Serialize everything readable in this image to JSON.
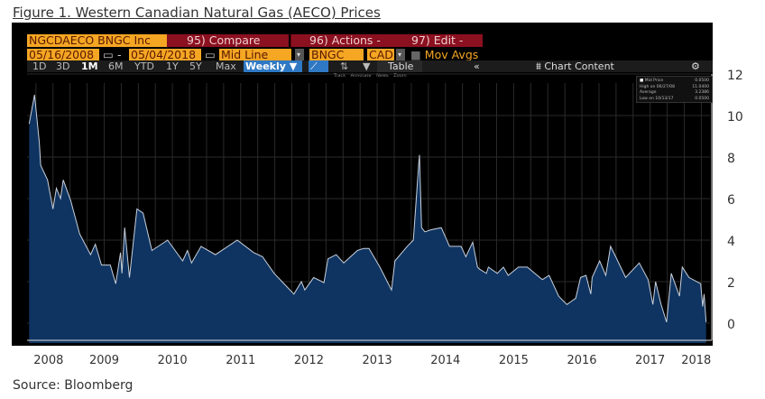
{
  "figure_title": "Figure 1. Western Canadian Natural Gas (AECO) Prices",
  "source": "Source: Bloomberg",
  "toolbar": {
    "ticker": "NGCDAECO BNGC Inc",
    "compare": "95) Compare",
    "actions": "96) Actions",
    "actions_dash": "-",
    "edit": "97) Edit -",
    "start_date": "05/16/2008",
    "date_sep": "-",
    "end_date": "05/04/2018",
    "line_type": "Mid Line",
    "source_code": "BNGC",
    "currency": "CAD",
    "mov_avgs": "Mov Avgs",
    "periods": [
      "1D",
      "3D",
      "1M",
      "6M",
      "YTD",
      "1Y",
      "5Y",
      "Max"
    ],
    "frequency": "Weekly ▼",
    "table": "Table",
    "collapse": "«",
    "chart_content": "Chart Content",
    "annotations": "Track Annotate News Zoom"
  },
  "colors": {
    "area": "#0f3461",
    "line": "#c8d0dc",
    "panel": "#000000",
    "grid": "#2a2a2a",
    "orange": "#f5a623",
    "red": "#8b1020"
  },
  "chart_data": {
    "type": "area",
    "title": "Western Canadian Natural Gas (AECO) Prices",
    "xlabel": "",
    "ylabel": "",
    "xlim": [
      2008.37,
      2018.35
    ],
    "ylim": [
      -1,
      12
    ],
    "yticks": [
      0,
      2,
      4,
      6,
      8,
      10,
      12
    ],
    "xticks": [
      "2008",
      "2009",
      "2010",
      "2011",
      "2012",
      "2013",
      "2014",
      "2015",
      "2016",
      "2017",
      "2018"
    ],
    "grid": true,
    "legend": {
      "placement": "top-right",
      "entries": [
        {
          "label": "Mid Price",
          "value": "0.0500"
        },
        {
          "label": "High on 06/27/08",
          "value": "11.0400"
        },
        {
          "label": "Average",
          "value": "3.2386"
        },
        {
          "label": "Low on 10/13/17",
          "value": "0.0500"
        }
      ]
    },
    "series": [
      {
        "name": "Mid Price",
        "x": [
          2008.4,
          2008.48,
          2008.55,
          2008.57,
          2008.67,
          2008.75,
          2008.8,
          2008.86,
          2008.9,
          2009.01,
          2009.14,
          2009.3,
          2009.37,
          2009.46,
          2009.59,
          2009.67,
          2009.74,
          2009.76,
          2009.8,
          2009.87,
          2009.98,
          2010.07,
          2010.2,
          2010.43,
          2010.65,
          2010.72,
          2010.78,
          2010.92,
          2011.13,
          2011.45,
          2011.69,
          2011.82,
          2011.99,
          2012.12,
          2012.28,
          2012.39,
          2012.44,
          2012.57,
          2012.72,
          2012.78,
          2012.9,
          2013.01,
          2013.21,
          2013.3,
          2013.38,
          2013.54,
          2013.71,
          2013.76,
          2013.94,
          2014.03,
          2014.11,
          2014.12,
          2014.15,
          2014.2,
          2014.29,
          2014.44,
          2014.56,
          2014.73,
          2014.8,
          2014.9,
          2014.97,
          2015.0,
          2015.1,
          2015.13,
          2015.26,
          2015.35,
          2015.42,
          2015.57,
          2015.7,
          2015.92,
          2016.02,
          2016.16,
          2016.28,
          2016.41,
          2016.48,
          2016.56,
          2016.63,
          2016.65,
          2016.76,
          2016.85,
          2016.92,
          2016.98,
          2017.14,
          2017.34,
          2017.47,
          2017.54,
          2017.58,
          2017.66,
          2017.74,
          2017.81,
          2017.93,
          2017.97,
          2018.07,
          2018.24,
          2018.27,
          2018.29,
          2018.32
        ],
        "y": [
          9.6,
          11.0,
          8.7,
          7.6,
          6.9,
          5.5,
          6.5,
          6.0,
          6.9,
          5.9,
          4.3,
          3.3,
          3.8,
          2.8,
          2.8,
          1.9,
          3.4,
          2.4,
          4.6,
          2.2,
          5.5,
          5.3,
          3.5,
          4.0,
          3.0,
          3.5,
          2.9,
          3.7,
          3.3,
          4.0,
          3.4,
          3.2,
          2.4,
          1.95,
          1.4,
          2.0,
          1.6,
          2.2,
          1.95,
          3.1,
          3.3,
          2.9,
          3.5,
          3.6,
          3.6,
          2.7,
          1.6,
          3.0,
          3.7,
          4.0,
          7.7,
          8.1,
          4.6,
          4.4,
          4.5,
          4.6,
          3.7,
          3.7,
          3.2,
          3.9,
          2.7,
          2.6,
          2.4,
          2.7,
          2.4,
          2.7,
          2.3,
          2.7,
          2.7,
          2.1,
          2.3,
          1.3,
          0.9,
          1.2,
          2.2,
          2.3,
          1.4,
          2.2,
          3.0,
          2.3,
          3.7,
          3.3,
          2.2,
          2.9,
          2.1,
          0.9,
          2.0,
          0.9,
          0.05,
          2.4,
          1.3,
          2.7,
          2.2,
          1.9,
          0.8,
          1.4,
          0.05
        ]
      }
    ]
  }
}
